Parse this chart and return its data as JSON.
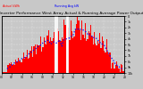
{
  "title": "Solar PV/Inverter Performance West Array Actual & Running Average Power Output",
  "title_fontsize": 3.2,
  "bg_color": "#c8c8c8",
  "plot_bg_color": "#c8c8c8",
  "bar_color": "#ff0000",
  "avg_color": "#0000ff",
  "grid_color": "#ffffff",
  "n_bars": 110,
  "ylim": [
    0,
    1
  ],
  "xlim": [
    0,
    110
  ],
  "ylabel_right_labels": [
    "10k",
    "9k",
    "8k",
    "7k",
    "6k",
    "5k",
    "4k",
    "3k",
    "2k",
    "1k",
    "0"
  ],
  "legend_actual_label": "Actual kWh",
  "legend_avg_label": "Running Avg kW",
  "x_tick_labels": [
    "00",
    "02",
    "04",
    "06",
    "08",
    "10",
    "12",
    "14",
    "16",
    "18",
    "20",
    "22",
    "24"
  ]
}
